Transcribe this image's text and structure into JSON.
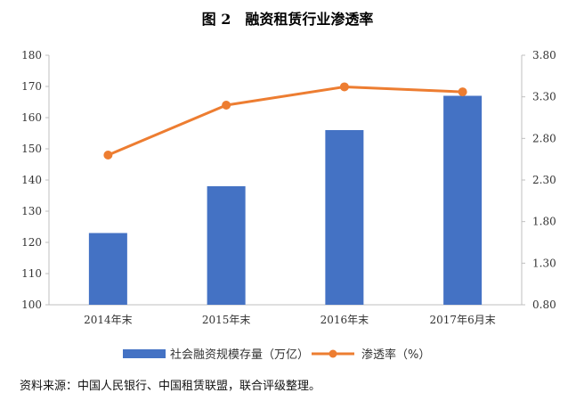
{
  "chart_data": {
    "type": "bar+line",
    "title": "图 2　融资租赁行业渗透率",
    "categories": [
      "2014年末",
      "2015年末",
      "2016年末",
      "2017年6月末"
    ],
    "series": [
      {
        "name": "社会融资规模存量（万亿）",
        "type": "bar",
        "axis": "left",
        "color": "#4472C4",
        "values": [
          123,
          138,
          156,
          167
        ]
      },
      {
        "name": "渗透率（%）",
        "type": "line",
        "axis": "right",
        "color": "#ED7D31",
        "values": [
          2.6,
          3.2,
          3.42,
          3.36
        ]
      }
    ],
    "y_left": {
      "ticks": [
        "180",
        "170",
        "160",
        "150",
        "140",
        "130",
        "120",
        "110",
        "100"
      ],
      "ylim": [
        100,
        180
      ]
    },
    "y_right": {
      "ticks": [
        "3.80",
        "3.30",
        "2.80",
        "2.30",
        "1.80",
        "1.30",
        "0.80"
      ],
      "ylim": [
        0.8,
        3.8
      ]
    },
    "legend": {
      "position": "bottom"
    },
    "grid": false
  },
  "source_note": "资料来源：中国人民银行、中国租赁联盟，联合评级整理。"
}
